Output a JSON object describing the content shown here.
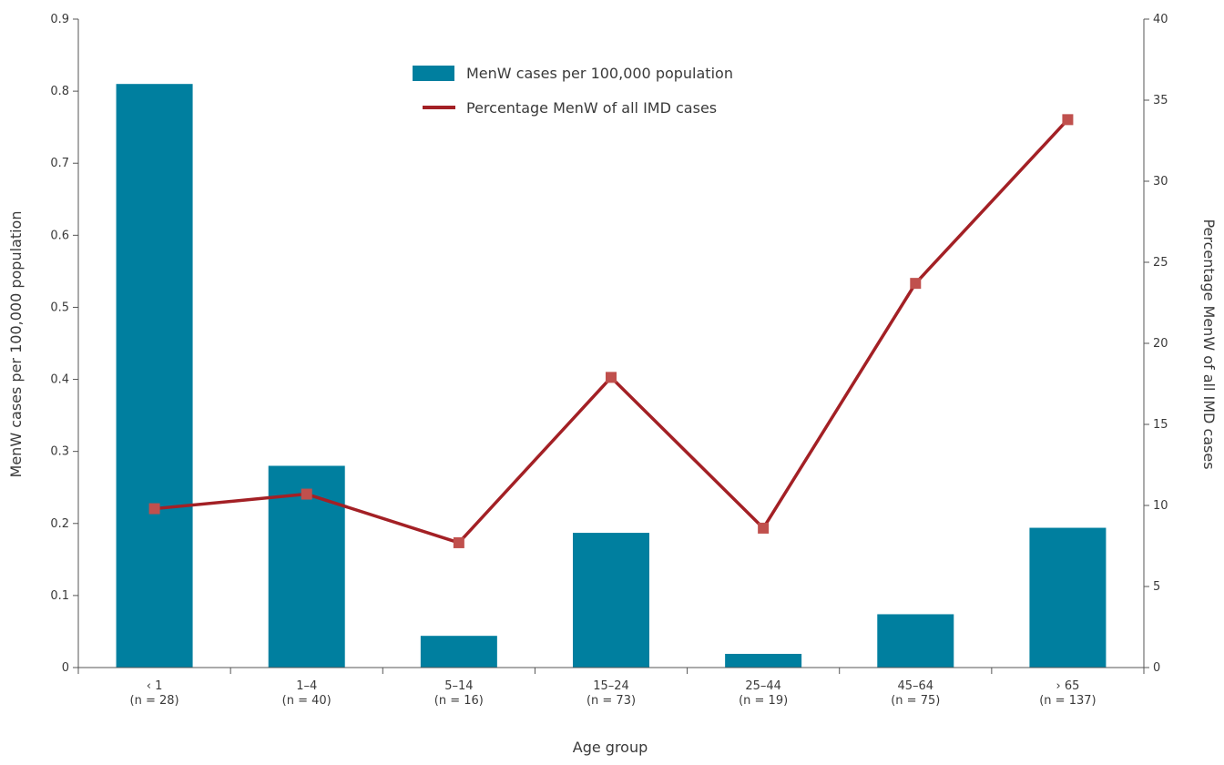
{
  "chart_data": {
    "type": "bar",
    "categories": [
      "‹ 1",
      "1–4",
      "5–14",
      "15–24",
      "25–44",
      "45–64",
      "› 65"
    ],
    "category_counts": [
      "(n = 28)",
      "(n = 40)",
      "(n = 16)",
      "(n = 73)",
      "(n = 19)",
      "(n = 75)",
      "(n = 137)"
    ],
    "series": [
      {
        "name": "MenW cases per 100,000 population",
        "type": "bar",
        "axis": "left",
        "color": "#007f9f",
        "values": [
          0.81,
          0.28,
          0.044,
          0.187,
          0.019,
          0.074,
          0.194
        ]
      },
      {
        "name": "Percentage MenW of all IMD cases",
        "type": "line",
        "axis": "right",
        "color": "#a32025",
        "marker_color": "#c0504d",
        "values": [
          9.8,
          10.7,
          7.7,
          17.9,
          8.6,
          23.7,
          33.8
        ]
      }
    ],
    "xlabel": "Age group",
    "ylabel": "MenW cases per 100,000 population",
    "y2label": "Percentage MenW of all IMD cases",
    "ylim": [
      0,
      0.9
    ],
    "y2lim": [
      0,
      40
    ],
    "yticks": [
      "0",
      "0.1",
      "0.2",
      "0.3",
      "0.4",
      "0.5",
      "0.6",
      "0.7",
      "0.8",
      "0.9"
    ],
    "y2ticks": [
      "0",
      "5",
      "10",
      "15",
      "20",
      "25",
      "30",
      "35",
      "40"
    ],
    "legend": "top-center",
    "grid": false
  }
}
